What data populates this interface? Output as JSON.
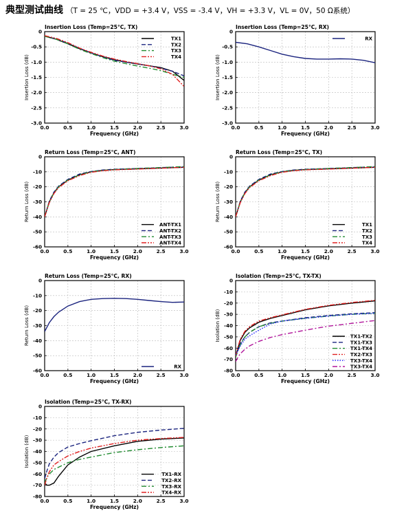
{
  "header": {
    "title": "典型测试曲线",
    "conditions": "（T = 25 ℃，VDD = +3.4 V，VSS = -3.4 V，VH = +3.3 V，VL = 0V，50 Ω系统）"
  },
  "chart_data": [
    {
      "type": "line",
      "title": "Insertion Loss (Temp=25°C, TX)",
      "xlabel": "Frequency (GHz)",
      "ylabel": "Insertion Loss (dB)",
      "xlim": [
        0,
        3
      ],
      "ylim": [
        -3,
        0
      ],
      "xticks": [
        "0.0",
        "0.5",
        "1.0",
        "1.5",
        "2.0",
        "2.5",
        "3.0"
      ],
      "yticks": [
        "0",
        "-0.5",
        "-1.0",
        "-1.5",
        "-2.0",
        "-2.5",
        "-3.0"
      ],
      "grid": true,
      "legend_position": "top-right",
      "x": [
        0,
        0.25,
        0.5,
        0.75,
        1.0,
        1.25,
        1.5,
        1.75,
        2.0,
        2.25,
        2.5,
        2.75,
        3.0
      ],
      "series": [
        {
          "name": "TX1",
          "color": "#000000",
          "dash": "solid",
          "values": [
            -0.15,
            -0.25,
            -0.4,
            -0.56,
            -0.7,
            -0.82,
            -0.92,
            -1.0,
            -1.06,
            -1.12,
            -1.18,
            -1.3,
            -1.6
          ]
        },
        {
          "name": "TX2",
          "color": "#1a237e",
          "dash": "dash",
          "values": [
            -0.15,
            -0.24,
            -0.38,
            -0.55,
            -0.7,
            -0.83,
            -0.94,
            -1.0,
            -1.06,
            -1.12,
            -1.2,
            -1.3,
            -1.45
          ]
        },
        {
          "name": "TX3",
          "color": "#1f8a2e",
          "dash": "dashdot",
          "values": [
            -0.15,
            -0.25,
            -0.4,
            -0.58,
            -0.72,
            -0.85,
            -0.97,
            -1.05,
            -1.13,
            -1.2,
            -1.28,
            -1.4,
            -1.5
          ]
        },
        {
          "name": "TX4",
          "color": "#e02020",
          "dash": "dashdotdot",
          "values": [
            -0.13,
            -0.22,
            -0.36,
            -0.54,
            -0.68,
            -0.8,
            -0.9,
            -0.98,
            -1.05,
            -1.12,
            -1.22,
            -1.4,
            -1.8
          ]
        }
      ]
    },
    {
      "type": "line",
      "title": "Insertion Loss (Temp=25°C, RX)",
      "xlabel": "Frequency (GHz)",
      "ylabel": "Insertion Loss (dB)",
      "xlim": [
        0,
        3
      ],
      "ylim": [
        -3,
        0
      ],
      "xticks": [
        "0.0",
        "0.5",
        "1.0",
        "1.5",
        "2.0",
        "2.5",
        "3.0"
      ],
      "yticks": [
        "0",
        "-0.5",
        "-1.0",
        "-1.5",
        "-2.0",
        "-2.5",
        "-3.0"
      ],
      "grid": true,
      "legend_position": "top-right",
      "x": [
        0,
        0.25,
        0.5,
        0.75,
        1.0,
        1.25,
        1.5,
        1.75,
        2.0,
        2.25,
        2.5,
        2.75,
        3.0
      ],
      "series": [
        {
          "name": "RX",
          "color": "#1a237e",
          "dash": "solid",
          "values": [
            -0.35,
            -0.4,
            -0.5,
            -0.62,
            -0.74,
            -0.82,
            -0.88,
            -0.9,
            -0.9,
            -0.89,
            -0.9,
            -0.94,
            -1.02
          ]
        }
      ]
    },
    {
      "type": "line",
      "title": "Return Loss (Temp=25°C, ANT)",
      "xlabel": "Frequency (GHz)",
      "ylabel": "Return Loss (dB)",
      "xlim": [
        0,
        3
      ],
      "ylim": [
        -60,
        0
      ],
      "xticks": [
        "0.0",
        "0.5",
        "1.0",
        "1.5",
        "2.0",
        "2.5",
        "3.0"
      ],
      "yticks": [
        "0",
        "-10",
        "-20",
        "-30",
        "-40",
        "-50",
        "-60"
      ],
      "grid": true,
      "legend_position": "bottom-right",
      "x": [
        0,
        0.1,
        0.2,
        0.3,
        0.5,
        0.75,
        1.0,
        1.25,
        1.5,
        2.0,
        2.5,
        3.0
      ],
      "series": [
        {
          "name": "ANT-TX1",
          "color": "#000000",
          "dash": "solid",
          "values": [
            -40,
            -30,
            -24,
            -20,
            -15.5,
            -12,
            -10,
            -9,
            -8.5,
            -8,
            -7.5,
            -7
          ]
        },
        {
          "name": "ANT-TX2",
          "color": "#1a237e",
          "dash": "dash",
          "values": [
            -40,
            -29.5,
            -23.5,
            -19.5,
            -15,
            -11.5,
            -9.8,
            -8.8,
            -8.3,
            -7.8,
            -7.2,
            -6.8
          ]
        },
        {
          "name": "ANT-TX3",
          "color": "#1f8a2e",
          "dash": "dashdot",
          "values": [
            -40,
            -30,
            -24,
            -20,
            -15.5,
            -12,
            -10,
            -9,
            -8.5,
            -7.8,
            -7.2,
            -6.5
          ]
        },
        {
          "name": "ANT-TX4",
          "color": "#e02020",
          "dash": "dashdotdot",
          "values": [
            -40,
            -30.5,
            -24.5,
            -20.5,
            -16,
            -12.5,
            -10.3,
            -9.3,
            -8.7,
            -8.2,
            -7.6,
            -7
          ]
        }
      ]
    },
    {
      "type": "line",
      "title": "Return Loss (Temp=25°C, TX)",
      "xlabel": "Frequency (GHz)",
      "ylabel": "Return Loss (dB)",
      "xlim": [
        0,
        3
      ],
      "ylim": [
        -60,
        0
      ],
      "xticks": [
        "0.0",
        "0.5",
        "1.0",
        "1.5",
        "2.0",
        "2.5",
        "3.0"
      ],
      "yticks": [
        "0",
        "-10",
        "-20",
        "-30",
        "-40",
        "-50",
        "-60"
      ],
      "grid": true,
      "legend_position": "bottom-right",
      "x": [
        0,
        0.1,
        0.2,
        0.3,
        0.5,
        0.75,
        1.0,
        1.25,
        1.5,
        2.0,
        2.5,
        3.0
      ],
      "series": [
        {
          "name": "TX1",
          "color": "#000000",
          "dash": "solid",
          "values": [
            -40,
            -30,
            -24,
            -20,
            -15.5,
            -12,
            -10,
            -9,
            -8.5,
            -8,
            -7.5,
            -7
          ]
        },
        {
          "name": "TX2",
          "color": "#1a237e",
          "dash": "dash",
          "values": [
            -40,
            -29.5,
            -23.5,
            -19.5,
            -15,
            -11.5,
            -9.8,
            -8.8,
            -8.3,
            -7.8,
            -7.2,
            -6.8
          ]
        },
        {
          "name": "TX3",
          "color": "#1f8a2e",
          "dash": "dashdot",
          "values": [
            -40,
            -30,
            -24,
            -20,
            -15.5,
            -12,
            -10,
            -9,
            -8.5,
            -7.8,
            -7.2,
            -6.5
          ]
        },
        {
          "name": "TX4",
          "color": "#e02020",
          "dash": "dashdotdot",
          "values": [
            -40,
            -30.5,
            -24.5,
            -20.5,
            -16,
            -12.5,
            -10.3,
            -9.3,
            -8.7,
            -8.2,
            -7.6,
            -7
          ]
        }
      ]
    },
    {
      "type": "line",
      "title": "Return Loss (Temp=25°C, RX)",
      "xlabel": "Frequency (GHz)",
      "ylabel": "Return Loss (dB)",
      "xlim": [
        0,
        3
      ],
      "ylim": [
        -60,
        0
      ],
      "xticks": [
        "0.0",
        "0.5",
        "1.0",
        "1.5",
        "2.0",
        "2.5",
        "3.0"
      ],
      "yticks": [
        "0",
        "-10",
        "-20",
        "-30",
        "-40",
        "-50",
        "-60"
      ],
      "grid": true,
      "legend_position": "bottom-right",
      "x": [
        0,
        0.1,
        0.2,
        0.3,
        0.5,
        0.75,
        1.0,
        1.25,
        1.5,
        1.75,
        2.0,
        2.25,
        2.5,
        2.75,
        3.0
      ],
      "series": [
        {
          "name": "RX",
          "color": "#1a237e",
          "dash": "solid",
          "values": [
            -34,
            -28,
            -24,
            -21,
            -17,
            -14,
            -12.5,
            -12,
            -11.8,
            -12,
            -12.5,
            -13.3,
            -14,
            -14.5,
            -14.3
          ]
        }
      ]
    },
    {
      "type": "line",
      "title": "Isolation (Temp=25°C, TX-TX)",
      "xlabel": "Frequency (GHz)",
      "ylabel": "Isolation (dB)",
      "xlim": [
        0,
        3
      ],
      "ylim": [
        -80,
        0
      ],
      "xticks": [
        "0.0",
        "0.5",
        "1.0",
        "1.5",
        "2.0",
        "2.5",
        "3.0"
      ],
      "yticks": [
        "0",
        "-10",
        "-20",
        "-30",
        "-40",
        "-50",
        "-60",
        "-70",
        "-80"
      ],
      "grid": true,
      "legend_position": "bottom-right",
      "x": [
        0,
        0.05,
        0.1,
        0.2,
        0.3,
        0.5,
        0.75,
        1.0,
        1.5,
        2.0,
        2.5,
        3.0
      ],
      "series": [
        {
          "name": "TX1-TX2",
          "color": "#000000",
          "dash": "solid",
          "values": [
            -68,
            -60,
            -53,
            -46,
            -42,
            -37,
            -33.5,
            -31,
            -26,
            -22.5,
            -20,
            -18
          ]
        },
        {
          "name": "TX1-TX3",
          "color": "#1a237e",
          "dash": "dash",
          "values": [
            -68,
            -62,
            -56,
            -50,
            -46,
            -41,
            -37.5,
            -36,
            -33,
            -31,
            -29.5,
            -28.5
          ]
        },
        {
          "name": "TX1-TX4",
          "color": "#1f8a2e",
          "dash": "dashdot",
          "values": [
            -68,
            -62,
            -57,
            -50,
            -46,
            -41,
            -38,
            -36,
            -33.5,
            -31.5,
            -30,
            -29
          ]
        },
        {
          "name": "TX2-TX3",
          "color": "#e02020",
          "dash": "dashdotdot",
          "values": [
            -67,
            -59,
            -52,
            -45,
            -41,
            -36,
            -33,
            -30.5,
            -25.5,
            -22,
            -19.5,
            -17.5
          ]
        },
        {
          "name": "TX3-TX4",
          "color": "#1a1aff",
          "dash": "dot",
          "values": [
            -66,
            -62,
            -58,
            -52,
            -49,
            -44,
            -38.5,
            -36,
            -33.5,
            -31.5,
            -30,
            -29
          ]
        },
        {
          "name": "TX3-TX4",
          "color": "#b0149a",
          "dash": "dashdot",
          "values": [
            -72,
            -68,
            -65,
            -61,
            -58,
            -54,
            -50.5,
            -48,
            -44,
            -40.5,
            -38,
            -35.5
          ]
        }
      ]
    },
    {
      "type": "line",
      "title": "Isolation (Temp=25°C, TX-RX)",
      "xlabel": "Frequency (GHz)",
      "ylabel": "Isolation (dB)",
      "xlim": [
        0,
        3
      ],
      "ylim": [
        -80,
        0
      ],
      "xticks": [
        "0.0",
        "0.5",
        "1.0",
        "1.5",
        "2.0",
        "2.5",
        "3.0"
      ],
      "yticks": [
        "0",
        "-10",
        "-20",
        "-30",
        "-40",
        "-50",
        "-60",
        "-70",
        "-80"
      ],
      "grid": true,
      "legend_position": "bottom-right",
      "x": [
        0,
        0.05,
        0.1,
        0.2,
        0.3,
        0.5,
        0.75,
        1.0,
        1.5,
        2.0,
        2.5,
        3.0
      ],
      "series": [
        {
          "name": "TX1-RX",
          "color": "#000000",
          "dash": "solid",
          "values": [
            -68,
            -70,
            -70,
            -68,
            -62,
            -52,
            -45,
            -40,
            -35,
            -31,
            -29,
            -28
          ]
        },
        {
          "name": "TX2-RX",
          "color": "#1a237e",
          "dash": "dash",
          "values": [
            -64,
            -57,
            -51,
            -45,
            -41,
            -36,
            -33,
            -30.5,
            -26,
            -23,
            -21,
            -19.5
          ]
        },
        {
          "name": "TX3-RX",
          "color": "#1f8a2e",
          "dash": "dashdot",
          "values": [
            -68,
            -63,
            -60,
            -56,
            -54,
            -50,
            -47,
            -45,
            -41,
            -38.5,
            -36.5,
            -35
          ]
        },
        {
          "name": "TX4-RX",
          "color": "#e02020",
          "dash": "dashdotdot",
          "values": [
            -70,
            -63,
            -58,
            -52,
            -49,
            -44,
            -40,
            -37,
            -33,
            -30,
            -28.5,
            -27.5
          ]
        }
      ]
    }
  ]
}
